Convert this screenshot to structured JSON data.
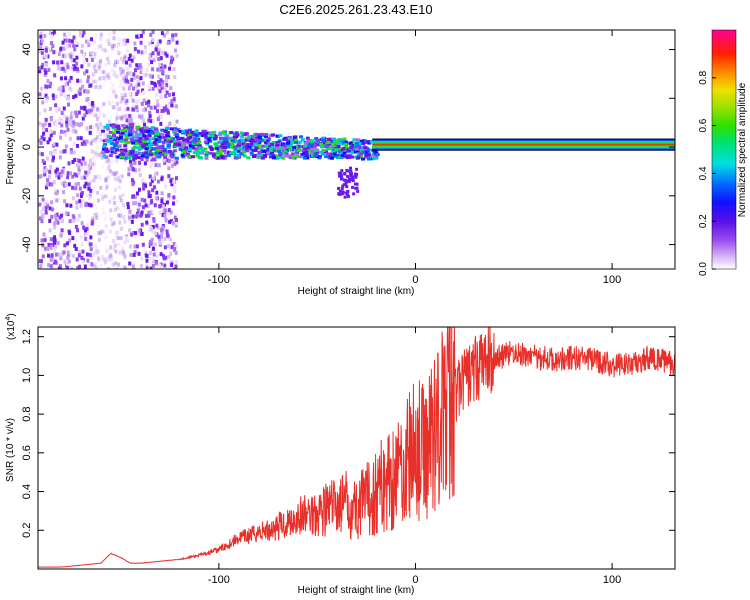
{
  "title": "C2E6.2025.261.23.43.E10",
  "colors": {
    "snr_line": "#e8302a",
    "frame": "#000000"
  },
  "chart_data": [
    {
      "type": "heatmap",
      "name": "spectrogram",
      "xlabel": "Height of straight line (km)",
      "ylabel": "Frequency (Hz)",
      "xlim": [
        -192,
        132
      ],
      "ylim": [
        -50,
        48
      ],
      "xticks": [
        -100,
        0,
        100
      ],
      "yticks": [
        -40,
        -20,
        0,
        20,
        40
      ],
      "ytick_labels": [
        "-40",
        "-20",
        "0",
        "20",
        "40"
      ],
      "xtick_labels": [
        "-100",
        "0",
        "100"
      ],
      "signal_band": {
        "x_start": -22,
        "x_end": 132,
        "freq_center": 1.0,
        "freq_halfwidth": 2.5
      },
      "colorbar": {
        "label": "Normalized spectral amplitude",
        "range": [
          0.0,
          1.0
        ],
        "ticks": [
          0.0,
          0.2,
          0.4,
          0.6,
          0.8
        ],
        "tick_labels": [
          "0.0",
          "0.2",
          "0.4",
          "0.6",
          "0.8"
        ]
      }
    },
    {
      "type": "line",
      "name": "snr",
      "xlabel": "Height of straight line (km)",
      "ylabel": "SNR (10 * v/v)",
      "y_multiplier": "(x10",
      "y_multiplier_exp": "4",
      "y_multiplier_close": ")",
      "xlim": [
        -192,
        132
      ],
      "ylim": [
        0,
        1.25
      ],
      "xticks": [
        -100,
        0,
        100
      ],
      "xtick_labels": [
        "-100",
        "0",
        "100"
      ],
      "yticks": [
        0.2,
        0.4,
        0.6,
        0.8,
        1.0,
        1.2
      ],
      "ytick_labels": [
        "0.2",
        "0.4",
        "0.6",
        "0.8",
        "1.0",
        "1.2"
      ],
      "x": [
        -192,
        -180,
        -170,
        -160,
        -155,
        -150,
        -145,
        -140,
        -130,
        -120,
        -110,
        -100,
        -95,
        -90,
        -85,
        -80,
        -75,
        -70,
        -65,
        -60,
        -55,
        -50,
        -45,
        -40,
        -35,
        -30,
        -25,
        -20,
        -15,
        -10,
        -5,
        0,
        5,
        10,
        15,
        20,
        25,
        30,
        35,
        40,
        45,
        50,
        55,
        60,
        70,
        80,
        90,
        100,
        110,
        115,
        120,
        125,
        132
      ],
      "y": [
        0.01,
        0.01,
        0.02,
        0.03,
        0.08,
        0.06,
        0.03,
        0.03,
        0.04,
        0.05,
        0.07,
        0.1,
        0.13,
        0.16,
        0.17,
        0.19,
        0.2,
        0.22,
        0.24,
        0.27,
        0.28,
        0.3,
        0.31,
        0.33,
        0.34,
        0.31,
        0.35,
        0.4,
        0.45,
        0.5,
        0.55,
        0.62,
        0.6,
        0.75,
        0.8,
        0.9,
        0.98,
        1.03,
        1.07,
        1.09,
        1.1,
        1.12,
        1.1,
        1.1,
        1.08,
        1.09,
        1.08,
        1.05,
        1.06,
        1.07,
        1.1,
        1.08,
        1.05
      ]
    }
  ]
}
